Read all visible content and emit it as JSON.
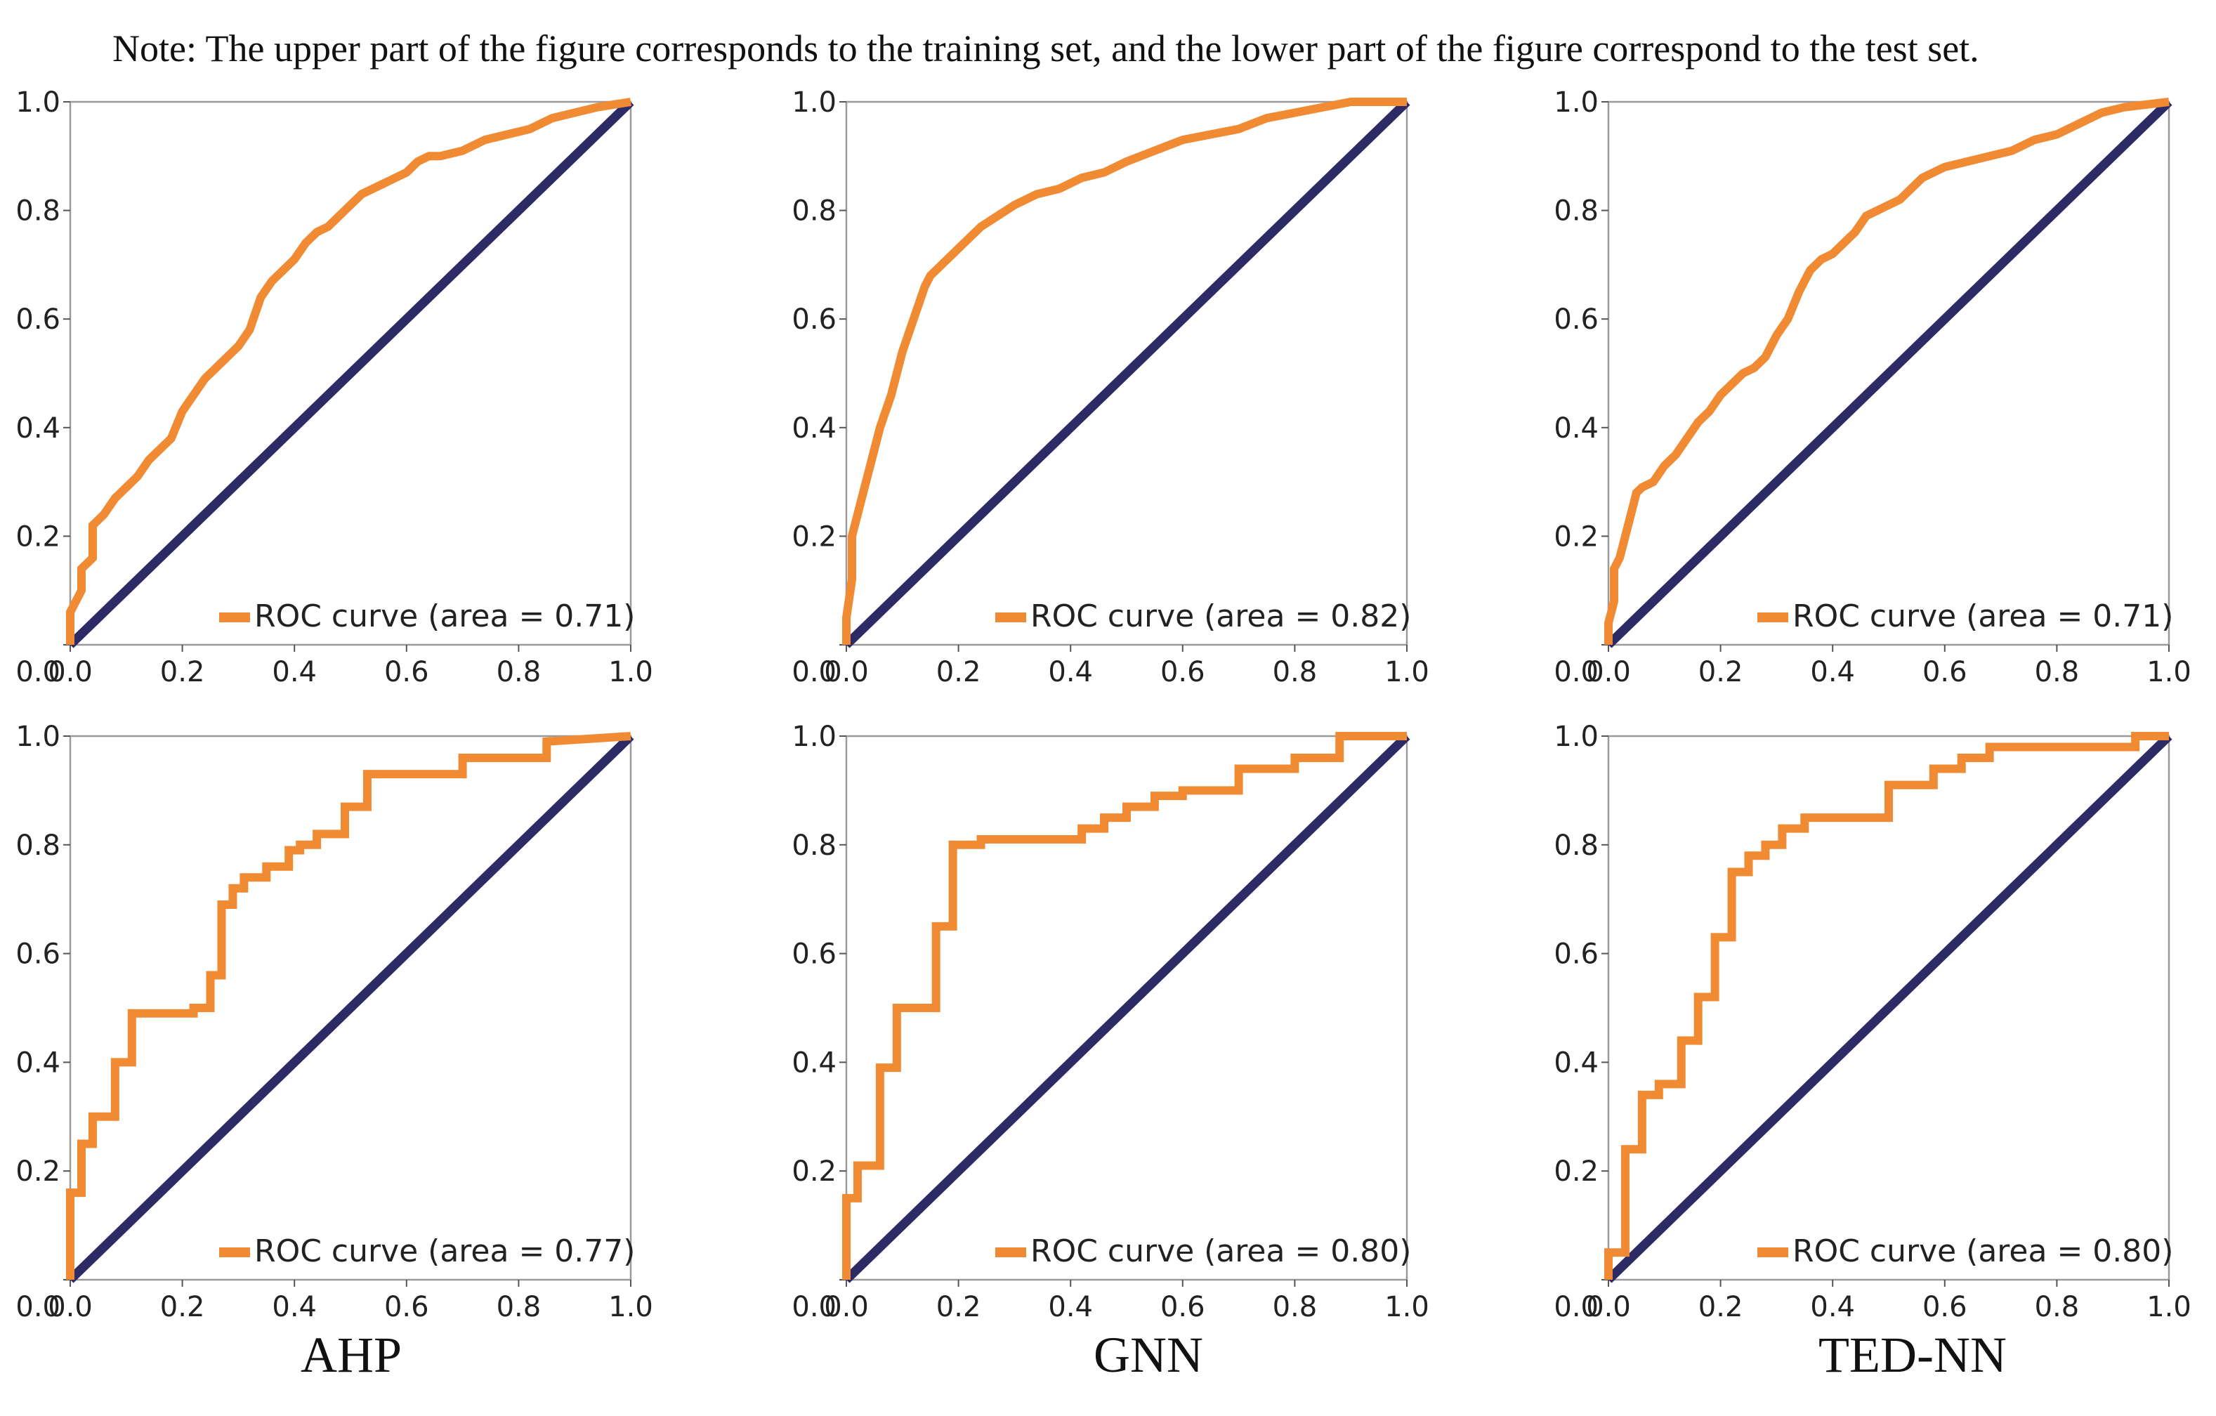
{
  "note": "Note: The upper part of the figure corresponds to the training set, and the lower part of the figure correspond to the test set.",
  "model_labels": [
    "AHP",
    "GNN",
    "TED-NN"
  ],
  "colors": {
    "roc": "#f08a33",
    "diagonal": "#2d2b66",
    "frame": "#9a9a9a"
  },
  "chart_data": [
    {
      "type": "line",
      "set": "training",
      "model": "AHP",
      "legend": "ROC curve (area = 0.71)",
      "xlim": [
        0,
        1
      ],
      "ylim": [
        0,
        1
      ],
      "xticks": [
        "0.0",
        "0.2",
        "0.4",
        "0.6",
        "0.8",
        "1.0"
      ],
      "yticks": [
        "0.0",
        "0.2",
        "0.4",
        "0.6",
        "0.8",
        "1.0"
      ],
      "series": [
        {
          "name": "ROC curve",
          "x": [
            0,
            0,
            0.02,
            0.02,
            0.04,
            0.04,
            0.06,
            0.08,
            0.1,
            0.12,
            0.14,
            0.16,
            0.18,
            0.2,
            0.22,
            0.24,
            0.26,
            0.28,
            0.3,
            0.32,
            0.34,
            0.36,
            0.38,
            0.4,
            0.42,
            0.44,
            0.46,
            0.48,
            0.5,
            0.52,
            0.54,
            0.56,
            0.58,
            0.6,
            0.62,
            0.64,
            0.66,
            0.7,
            0.74,
            0.78,
            0.82,
            0.86,
            0.9,
            0.94,
            1
          ],
          "y": [
            0,
            0.06,
            0.1,
            0.14,
            0.16,
            0.22,
            0.24,
            0.27,
            0.29,
            0.31,
            0.34,
            0.36,
            0.38,
            0.43,
            0.46,
            0.49,
            0.51,
            0.53,
            0.55,
            0.58,
            0.64,
            0.67,
            0.69,
            0.71,
            0.74,
            0.76,
            0.77,
            0.79,
            0.81,
            0.83,
            0.84,
            0.85,
            0.86,
            0.87,
            0.89,
            0.9,
            0.9,
            0.91,
            0.93,
            0.94,
            0.95,
            0.97,
            0.98,
            0.99,
            1
          ]
        },
        {
          "name": "chance",
          "x": [
            0,
            1
          ],
          "y": [
            0,
            1
          ]
        }
      ]
    },
    {
      "type": "line",
      "set": "training",
      "model": "GNN",
      "legend": "ROC curve (area = 0.82)",
      "xlim": [
        0,
        1
      ],
      "ylim": [
        0,
        1
      ],
      "xticks": [
        "0.0",
        "0.2",
        "0.4",
        "0.6",
        "0.8",
        "1.0"
      ],
      "yticks": [
        "0.0",
        "0.2",
        "0.4",
        "0.6",
        "0.8",
        "1.0"
      ],
      "series": [
        {
          "name": "ROC curve",
          "x": [
            0,
            0,
            0.01,
            0.01,
            0.02,
            0.03,
            0.04,
            0.05,
            0.06,
            0.07,
            0.08,
            0.09,
            0.1,
            0.11,
            0.12,
            0.13,
            0.14,
            0.15,
            0.16,
            0.18,
            0.2,
            0.22,
            0.24,
            0.27,
            0.3,
            0.34,
            0.38,
            0.42,
            0.46,
            0.5,
            0.55,
            0.6,
            0.65,
            0.7,
            0.75,
            0.8,
            0.85,
            0.9,
            1
          ],
          "y": [
            0,
            0.05,
            0.12,
            0.2,
            0.24,
            0.28,
            0.32,
            0.36,
            0.4,
            0.43,
            0.46,
            0.5,
            0.54,
            0.57,
            0.6,
            0.63,
            0.66,
            0.68,
            0.69,
            0.71,
            0.73,
            0.75,
            0.77,
            0.79,
            0.81,
            0.83,
            0.84,
            0.86,
            0.87,
            0.89,
            0.91,
            0.93,
            0.94,
            0.95,
            0.97,
            0.98,
            0.99,
            1,
            1
          ]
        },
        {
          "name": "chance",
          "x": [
            0,
            1
          ],
          "y": [
            0,
            1
          ]
        }
      ]
    },
    {
      "type": "line",
      "set": "training",
      "model": "TED-NN",
      "legend": "ROC curve (area = 0.71)",
      "xlim": [
        0,
        1
      ],
      "ylim": [
        0,
        1
      ],
      "xticks": [
        "0.0",
        "0.2",
        "0.4",
        "0.6",
        "0.8",
        "1.0"
      ],
      "yticks": [
        "0.0",
        "0.2",
        "0.4",
        "0.6",
        "0.8",
        "1.0"
      ],
      "series": [
        {
          "name": "ROC curve",
          "x": [
            0,
            0,
            0.01,
            0.01,
            0.02,
            0.03,
            0.04,
            0.05,
            0.06,
            0.08,
            0.1,
            0.12,
            0.14,
            0.16,
            0.18,
            0.2,
            0.22,
            0.24,
            0.26,
            0.28,
            0.3,
            0.32,
            0.34,
            0.36,
            0.38,
            0.4,
            0.42,
            0.44,
            0.46,
            0.48,
            0.5,
            0.52,
            0.54,
            0.56,
            0.58,
            0.6,
            0.64,
            0.68,
            0.72,
            0.76,
            0.8,
            0.84,
            0.88,
            0.92,
            1
          ],
          "y": [
            0,
            0.04,
            0.08,
            0.14,
            0.16,
            0.2,
            0.24,
            0.28,
            0.29,
            0.3,
            0.33,
            0.35,
            0.38,
            0.41,
            0.43,
            0.46,
            0.48,
            0.5,
            0.51,
            0.53,
            0.57,
            0.6,
            0.65,
            0.69,
            0.71,
            0.72,
            0.74,
            0.76,
            0.79,
            0.8,
            0.81,
            0.82,
            0.84,
            0.86,
            0.87,
            0.88,
            0.89,
            0.9,
            0.91,
            0.93,
            0.94,
            0.96,
            0.98,
            0.99,
            1
          ]
        },
        {
          "name": "chance",
          "x": [
            0,
            1
          ],
          "y": [
            0,
            1
          ]
        }
      ]
    },
    {
      "type": "line",
      "set": "test",
      "model": "AHP",
      "legend": "ROC curve (area = 0.77)",
      "xlim": [
        0,
        1
      ],
      "ylim": [
        0,
        1
      ],
      "xticks": [
        "0.0",
        "0.2",
        "0.4",
        "0.6",
        "0.8",
        "1.0"
      ],
      "yticks": [
        "0.0",
        "0.2",
        "0.4",
        "0.6",
        "0.8",
        "1.0"
      ],
      "series": [
        {
          "name": "ROC curve",
          "x": [
            0,
            0,
            0.02,
            0.02,
            0.04,
            0.04,
            0.08,
            0.08,
            0.11,
            0.11,
            0.22,
            0.22,
            0.25,
            0.25,
            0.27,
            0.27,
            0.29,
            0.29,
            0.31,
            0.31,
            0.35,
            0.35,
            0.39,
            0.39,
            0.41,
            0.41,
            0.44,
            0.44,
            0.49,
            0.49,
            0.53,
            0.53,
            0.7,
            0.7,
            0.85,
            0.85,
            1
          ],
          "y": [
            0,
            0.16,
            0.16,
            0.25,
            0.25,
            0.3,
            0.3,
            0.4,
            0.4,
            0.49,
            0.49,
            0.5,
            0.5,
            0.56,
            0.56,
            0.69,
            0.69,
            0.72,
            0.72,
            0.74,
            0.74,
            0.76,
            0.76,
            0.79,
            0.79,
            0.8,
            0.8,
            0.82,
            0.82,
            0.87,
            0.87,
            0.93,
            0.93,
            0.96,
            0.96,
            0.99,
            1
          ]
        },
        {
          "name": "chance",
          "x": [
            0,
            1
          ],
          "y": [
            0,
            1
          ]
        }
      ]
    },
    {
      "type": "line",
      "set": "test",
      "model": "GNN",
      "legend": "ROC curve (area = 0.80)",
      "xlim": [
        0,
        1
      ],
      "ylim": [
        0,
        1
      ],
      "xticks": [
        "0.0",
        "0.2",
        "0.4",
        "0.6",
        "0.8",
        "1.0"
      ],
      "yticks": [
        "0.0",
        "0.2",
        "0.4",
        "0.6",
        "0.8",
        "1.0"
      ],
      "series": [
        {
          "name": "ROC curve",
          "x": [
            0,
            0,
            0.02,
            0.02,
            0.06,
            0.06,
            0.09,
            0.09,
            0.13,
            0.13,
            0.16,
            0.16,
            0.19,
            0.19,
            0.24,
            0.24,
            0.42,
            0.42,
            0.46,
            0.46,
            0.5,
            0.5,
            0.55,
            0.55,
            0.6,
            0.6,
            0.7,
            0.7,
            0.8,
            0.8,
            0.88,
            0.88,
            1
          ],
          "y": [
            0,
            0.15,
            0.15,
            0.21,
            0.21,
            0.39,
            0.39,
            0.5,
            0.5,
            0.5,
            0.5,
            0.65,
            0.65,
            0.8,
            0.8,
            0.81,
            0.81,
            0.83,
            0.83,
            0.85,
            0.85,
            0.87,
            0.87,
            0.89,
            0.89,
            0.9,
            0.9,
            0.94,
            0.94,
            0.96,
            0.96,
            1,
            1
          ]
        },
        {
          "name": "chance",
          "x": [
            0,
            1
          ],
          "y": [
            0,
            1
          ]
        }
      ]
    },
    {
      "type": "line",
      "set": "test",
      "model": "TED-NN",
      "legend": "ROC curve (area = 0.80)",
      "xlim": [
        0,
        1
      ],
      "ylim": [
        0,
        1
      ],
      "xticks": [
        "0.0",
        "0.2",
        "0.4",
        "0.6",
        "0.8",
        "1.0"
      ],
      "yticks": [
        "0.0",
        "0.2",
        "0.4",
        "0.6",
        "0.8",
        "1.0"
      ],
      "series": [
        {
          "name": "ROC curve",
          "x": [
            0,
            0,
            0.03,
            0.03,
            0.06,
            0.06,
            0.09,
            0.09,
            0.13,
            0.13,
            0.16,
            0.16,
            0.19,
            0.19,
            0.22,
            0.22,
            0.25,
            0.25,
            0.28,
            0.28,
            0.31,
            0.31,
            0.35,
            0.35,
            0.5,
            0.5,
            0.58,
            0.58,
            0.63,
            0.63,
            0.68,
            0.68,
            0.94,
            0.94,
            1
          ],
          "y": [
            0,
            0.05,
            0.05,
            0.24,
            0.24,
            0.34,
            0.34,
            0.36,
            0.36,
            0.44,
            0.44,
            0.52,
            0.52,
            0.63,
            0.63,
            0.75,
            0.75,
            0.78,
            0.78,
            0.8,
            0.8,
            0.83,
            0.83,
            0.85,
            0.85,
            0.91,
            0.91,
            0.94,
            0.94,
            0.96,
            0.96,
            0.98,
            0.98,
            1,
            1
          ]
        },
        {
          "name": "chance",
          "x": [
            0,
            1
          ],
          "y": [
            0,
            1
          ]
        }
      ]
    }
  ]
}
